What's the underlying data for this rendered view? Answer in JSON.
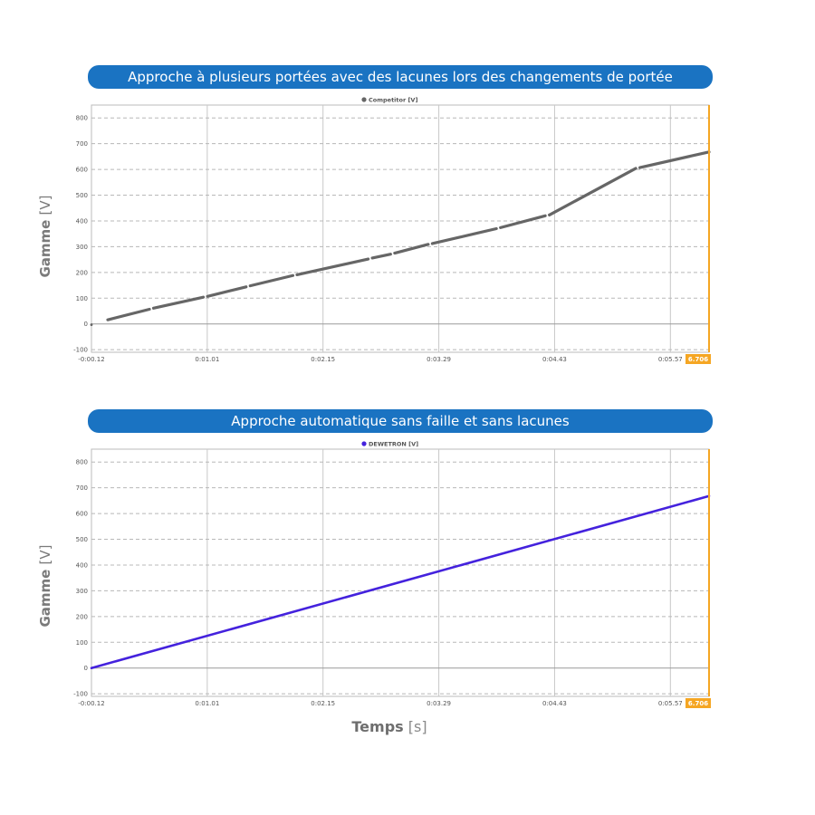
{
  "xlabel": {
    "bold": "Temps",
    "unit": "[s]"
  },
  "colors": {
    "banner": "#1a73c2",
    "cursor": "#f5a623"
  },
  "chart_data": [
    {
      "type": "line",
      "title": "Approche à plusieurs portées avec des lacunes lors des changements de portée",
      "ylabel_main": "Gamme",
      "ylabel_unit": "[V]",
      "legend": "Competitor [V]",
      "x_tick_labels": [
        "-0:00.12",
        "0:01.01",
        "0:02.15",
        "0:03.29",
        "0:04.43",
        "0:05.57"
      ],
      "y_ticks": [
        800,
        700,
        600,
        500,
        400,
        300,
        200,
        100,
        0,
        -100
      ],
      "ylim": [
        -110,
        850
      ],
      "xlim": [
        -0.12,
        5.95
      ],
      "cursor": {
        "x": 5.95,
        "label": "6.706"
      },
      "series": [
        {
          "color": "#666666",
          "style": "dashed",
          "segments": [
            {
              "x": [
                -0.12,
                -0.12
              ],
              "y": [
                -3,
                -3
              ]
            },
            {
              "x": [
                0.04,
                0.45
              ],
              "y": [
                16,
                57
              ]
            },
            {
              "x": [
                0.49,
                0.98
              ],
              "y": [
                61,
                104
              ]
            },
            {
              "x": [
                1.02,
                1.4
              ],
              "y": [
                107,
                144
              ]
            },
            {
              "x": [
                1.44,
                1.86
              ],
              "y": [
                148,
                188
              ]
            },
            {
              "x": [
                1.9,
                2.6
              ],
              "y": [
                191,
                252
              ]
            },
            {
              "x": [
                2.64,
                2.82
              ],
              "y": [
                256,
                271
              ]
            },
            {
              "x": [
                2.86,
                3.19
              ],
              "y": [
                275,
                309
              ]
            },
            {
              "x": [
                3.23,
                3.86
              ],
              "y": [
                312,
                370
              ]
            },
            {
              "x": [
                3.9,
                4.34
              ],
              "y": [
                374,
                420
              ]
            },
            {
              "x": [
                4.38,
                5.23
              ],
              "y": [
                423,
                604
              ]
            },
            {
              "x": [
                5.27,
                5.95
              ],
              "y": [
                607,
                668
              ]
            }
          ]
        }
      ]
    },
    {
      "type": "line",
      "title": "Approche automatique sans faille et sans lacunes",
      "ylabel_main": "Gamme",
      "ylabel_unit": "[V]",
      "legend": "DEWETRON [V]",
      "x_tick_labels": [
        "-0:00.12",
        "0:01.01",
        "0:02.15",
        "0:03.29",
        "0:04.43",
        "0:05.57"
      ],
      "y_ticks": [
        800,
        700,
        600,
        500,
        400,
        300,
        200,
        100,
        0,
        -100
      ],
      "ylim": [
        -110,
        850
      ],
      "xlim": [
        -0.12,
        5.95
      ],
      "cursor": {
        "x": 5.95,
        "label": "6.706"
      },
      "series": [
        {
          "color": "#4422dd",
          "style": "solid",
          "segments": [
            {
              "x": [
                -0.12,
                5.95
              ],
              "y": [
                0,
                668
              ]
            }
          ]
        }
      ]
    }
  ]
}
